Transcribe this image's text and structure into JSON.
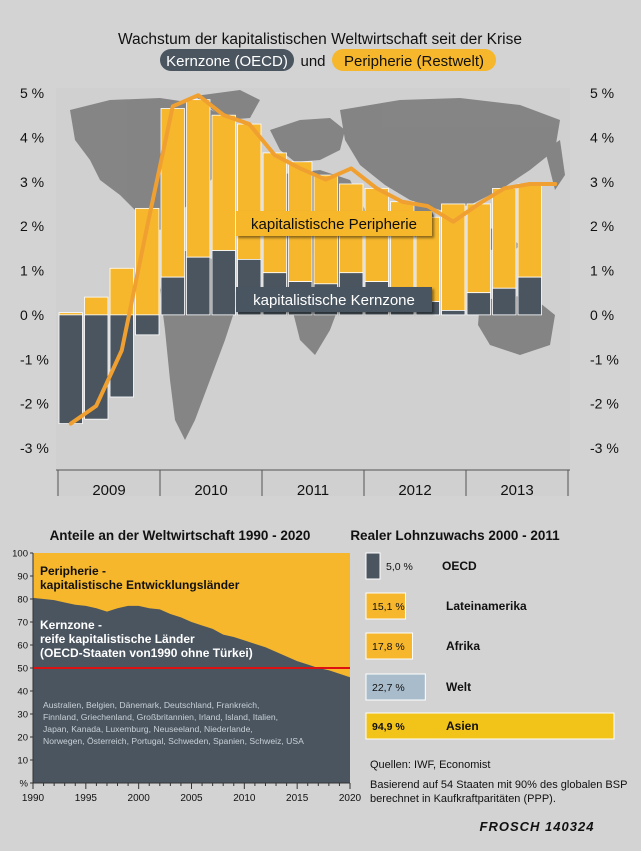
{
  "title": "Wachstum der kapitalistischen Weltwirtschaft seit der Krise",
  "subtitle": {
    "core": "Kernzone (OECD)",
    "und": "und",
    "periphery": "Peripherie (Restwelt)"
  },
  "colors": {
    "core": "#4a5560",
    "periphery": "#f6b72c",
    "line": "#f0a030",
    "background": "#d3d3d3",
    "map": "#7c7c7c",
    "asia": "#f2c318",
    "world": "#a9bccb",
    "threshold": "#dd1111"
  },
  "credit": "FROSCH 140324",
  "chart_data": [
    {
      "type": "bar",
      "title": "Wachstum der kapitalistischen Weltwirtschaft seit der Krise",
      "ylim": [
        -3,
        5
      ],
      "y_ticks": [
        "5 %",
        "4 %",
        "3 %",
        "2 %",
        "1 %",
        "0 %",
        "-1 %",
        "-2 %",
        "-3 %"
      ],
      "x_ticks": [
        "2009",
        "2010",
        "2011",
        "2012",
        "2013"
      ],
      "x": [
        "2009-1",
        "2009-2",
        "2009-3",
        "2009-4",
        "2010-1",
        "2010-2",
        "2010-3",
        "2010-4",
        "2011-1",
        "2011-2",
        "2011-3",
        "2011-4",
        "2012-1",
        "2012-2",
        "2012-3",
        "2012-4",
        "2013-1",
        "2013-2",
        "2013-3",
        "2013-4"
      ],
      "series": [
        {
          "name": "kapitalistische Kernzone",
          "values": [
            -2.45,
            -2.35,
            -1.85,
            -0.45,
            0.85,
            1.3,
            1.45,
            1.25,
            0.95,
            0.75,
            0.7,
            0.95,
            0.75,
            0.55,
            0.3,
            0.1,
            0.5,
            0.6,
            0.85,
            0
          ]
        },
        {
          "name": "kapitalistische Peripherie",
          "values": [
            0.05,
            0.4,
            1.05,
            2.4,
            3.8,
            3.55,
            3.05,
            3.05,
            2.7,
            2.7,
            2.45,
            2.0,
            2.1,
            2.0,
            1.9,
            2.4,
            2.0,
            2.25,
            2.1,
            0
          ]
        }
      ],
      "line": {
        "values": [
          -2.45,
          -2.05,
          -0.8,
          2.0,
          4.7,
          4.95,
          4.5,
          4.3,
          3.6,
          3.3,
          3.05,
          3.3,
          2.85,
          2.55,
          2.45,
          2.1,
          2.5,
          2.85,
          2.95,
          2.95
        ]
      },
      "labels": {
        "periphery": "kapitalistische Peripherie",
        "core": "kapitalistische Kernzone"
      }
    },
    {
      "type": "area",
      "title": "Anteile an der Weltwirtschaft 1990 - 2020",
      "xlim": [
        1990,
        2020
      ],
      "ylim": [
        0,
        100
      ],
      "x_ticks": [
        "1990",
        "1995",
        "2000",
        "2005",
        "2010",
        "2015",
        "2020"
      ],
      "y_ticks": [
        "%",
        "10",
        "20",
        "30",
        "40",
        "50",
        "60",
        "70",
        "80",
        "90",
        "100"
      ],
      "x": [
        1990,
        1991,
        1992,
        1993,
        1994,
        1995,
        1996,
        1997,
        1998,
        1999,
        2000,
        2001,
        2002,
        2003,
        2004,
        2005,
        2006,
        2007,
        2008,
        2009,
        2010,
        2011,
        2012,
        2013,
        2014,
        2015,
        2016,
        2017,
        2018,
        2019,
        2020
      ],
      "series": [
        {
          "name": "Kernzone",
          "values": [
            80.5,
            80,
            79.5,
            78.5,
            77.5,
            77,
            76,
            74.5,
            76,
            77,
            77,
            76,
            75.5,
            73.5,
            72,
            70,
            68.5,
            67,
            64.5,
            63.5,
            62,
            60.5,
            59,
            57,
            55,
            53,
            51.5,
            50,
            49,
            47.5,
            46
          ]
        }
      ],
      "reference_line": 50,
      "periphery_label": [
        "Peripherie -",
        "kapitalistische Entwicklungsländer"
      ],
      "core_label": [
        "Kernzone -",
        "reife kapitalistische Länder",
        "(OECD-Staaten von1990 ohne Türkei)"
      ],
      "countries": [
        "Australien, Belgien, Dänemark, Deutschland, Frankreich,",
        "Finnland, Griechenland, Großbritannien, Irland, Island, Italien,",
        "Japan, Kanada, Luxemburg, Neuseeland, Niederlande,",
        "Norwegen, Österreich, Portugal, Schweden, Spanien, Schweiz, USA"
      ]
    },
    {
      "type": "bar",
      "title": "Realer Lohnzuwachs 2000 - 2011",
      "categories": [
        "OECD",
        "Lateinamerika",
        "Afrika",
        "Welt",
        "Asien"
      ],
      "values": [
        5.0,
        15.1,
        17.8,
        22.7,
        94.9
      ],
      "value_labels": [
        "5,0 %",
        "15,1 %",
        "17,8 %",
        "22,7 %",
        "94,9 %"
      ]
    }
  ],
  "sources": [
    "Quellen: IWF, Economist",
    "Basierend auf 54 Staaten mit 90% des globalen BSP",
    "berechnet in Kaufkraftparitäten (PPP)."
  ]
}
